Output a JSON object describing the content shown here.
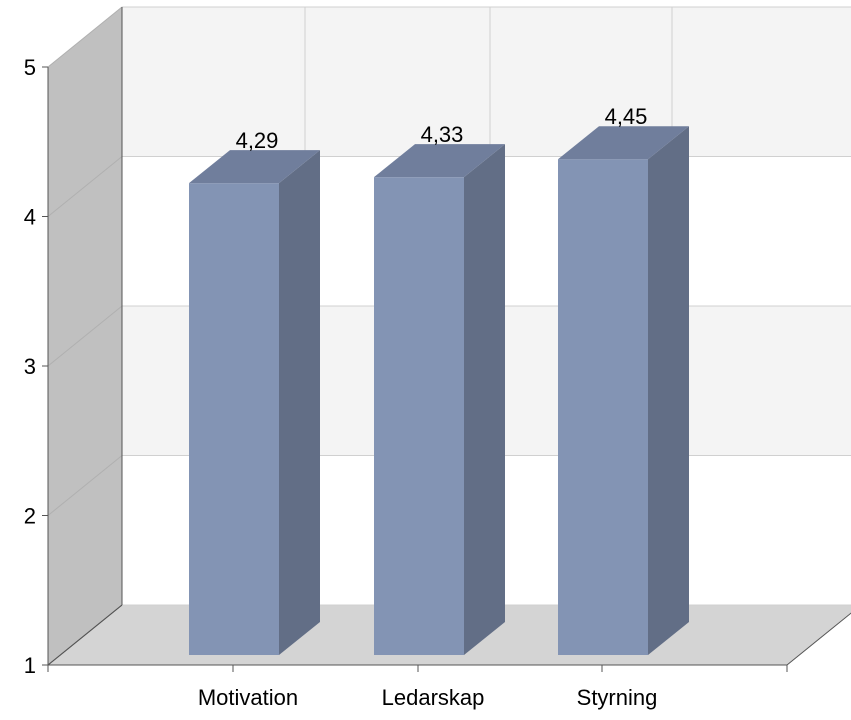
{
  "chart_data": {
    "type": "bar",
    "title": "",
    "xlabel": "",
    "ylabel": "",
    "categories": [
      "Motivation",
      "Ledarskap",
      "Styrning"
    ],
    "values": [
      4.29,
      4.33,
      4.45
    ],
    "value_labels": [
      "4,29",
      "4,33",
      "4,45"
    ],
    "ylim": [
      1,
      5
    ],
    "yticks": [
      1,
      2,
      3,
      4,
      5
    ],
    "ytick_labels": [
      "1",
      "2",
      "3",
      "4",
      "5"
    ],
    "grid": true,
    "legend": "none",
    "three_d": true
  },
  "colors": {
    "bar_front": "#8394b4",
    "bar_side": "#626e86",
    "bar_top": "#707e9c",
    "back_wall_band": "#f4f4f4",
    "back_wall_plain": "#ffffff",
    "side_wall": "#c0c0c0",
    "floor": "#d4d4d4",
    "grid": "#d0d0d0",
    "axis": "#555555"
  }
}
